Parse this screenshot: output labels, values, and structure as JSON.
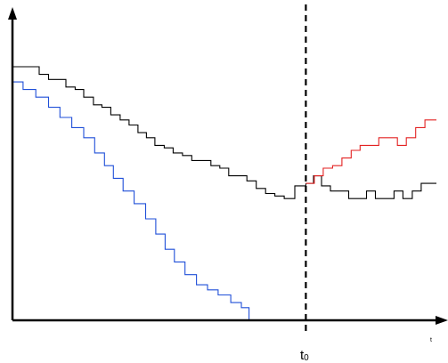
{
  "chart_data": {
    "type": "line",
    "step": true,
    "title": "",
    "xlabel": "t",
    "ylabel": "",
    "xlim": [
      0,
      100
    ],
    "ylim": [
      0,
      100
    ],
    "grid": false,
    "legend": "none",
    "axis_ticks": "none",
    "marker": {
      "label": "t",
      "subscript": "0",
      "x": 69.2,
      "style": "dashed"
    },
    "series": [
      {
        "color": "#1f4fd8",
        "x": [
          0,
          2.5,
          5.5,
          8.5,
          11.2,
          14,
          16.8,
          19.4,
          21.7,
          23.8,
          26.1,
          28.7,
          31.4,
          33.8,
          36,
          38.2,
          40.7,
          43.4,
          46,
          48.5,
          51.5,
          54,
          55.8,
          58,
          60.5,
          62.7,
          64.6,
          66.6
        ],
        "y": [
          94,
          91,
          88,
          84,
          80,
          76,
          72,
          66,
          61,
          56,
          51,
          46,
          40,
          34,
          28,
          23,
          18,
          14,
          12,
          10,
          7,
          5,
          0,
          0,
          0,
          0,
          0,
          0
        ]
      },
      {
        "color": "#000000",
        "x": [
          0,
          6.3,
          8.5,
          12.6,
          14.8,
          16.8,
          19.1,
          21.1,
          23.2,
          25.4,
          27.5,
          29.6,
          31.6,
          33.6,
          35.8,
          37.9,
          40.1,
          42.3,
          44.5,
          46.8,
          48.9,
          51,
          53.2,
          55.3,
          57.5,
          59.7,
          61.9,
          64.1,
          66.6,
          69.2
        ],
        "y": [
          100,
          97,
          95,
          92,
          91,
          88,
          85,
          84,
          81,
          79,
          77,
          74,
          72,
          69,
          68,
          66,
          65,
          63,
          63,
          61,
          60,
          57,
          57,
          55,
          52,
          50,
          49,
          48,
          53,
          54
        ]
      },
      {
        "color": "#000000",
        "x": [
          69.2,
          71,
          72.9,
          75,
          77.1,
          79.3,
          81.3,
          83.5,
          85.6,
          87.8,
          90,
          92.1,
          94.3,
          96.4,
          98.6,
          100
        ],
        "y": [
          54,
          57,
          53,
          51,
          51,
          48,
          48,
          51,
          48,
          48,
          51,
          48,
          51,
          54,
          54,
          54
        ]
      },
      {
        "color": "#e32222",
        "x": [
          69.2,
          71.2,
          73.3,
          75.5,
          77.7,
          79.9,
          82,
          84.2,
          86.4,
          88.6,
          90.8,
          92.9,
          95.1,
          97.3,
          100
        ],
        "y": [
          54,
          57,
          60,
          61,
          64,
          67,
          69,
          69,
          72,
          72,
          69,
          72,
          76,
          79,
          79
        ]
      }
    ]
  }
}
